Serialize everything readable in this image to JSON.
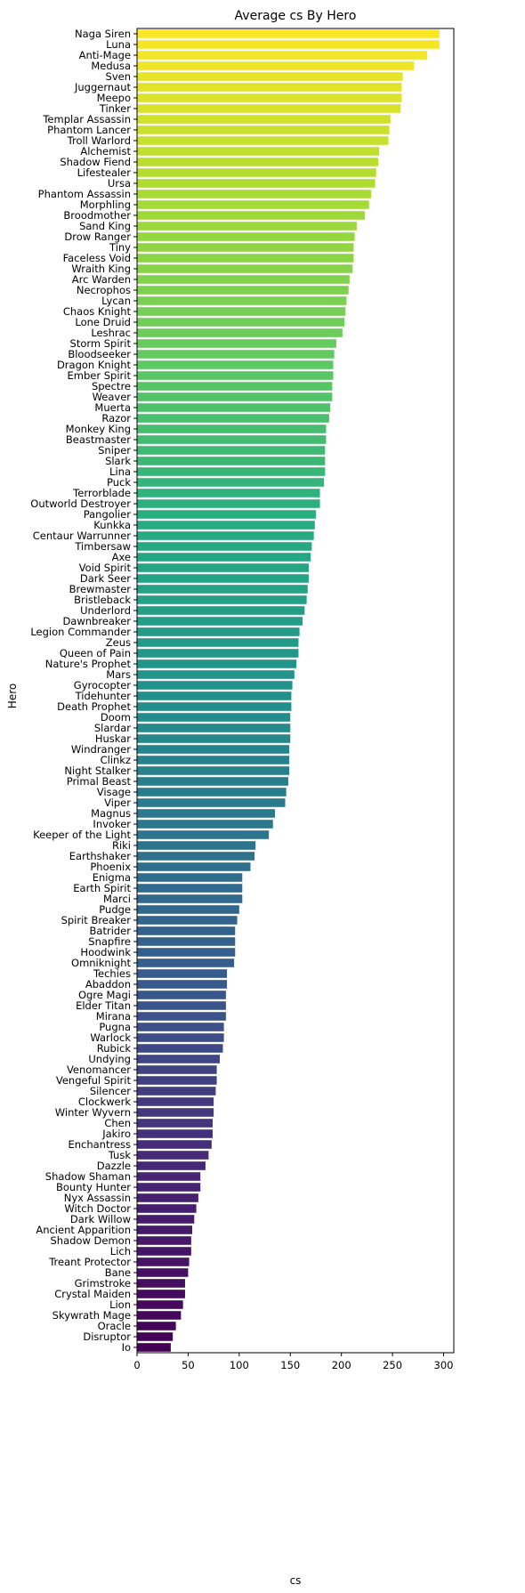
{
  "chart_data": {
    "type": "bar",
    "orientation": "horizontal",
    "title": "Average cs By Hero",
    "xlabel": "cs",
    "ylabel": "Hero",
    "xlim": [
      0,
      310
    ],
    "xticks": [
      0,
      50,
      100,
      150,
      200,
      250,
      300
    ],
    "grid": false,
    "colormap": "viridis",
    "categories": [
      "Naga Siren",
      "Luna",
      "Anti-Mage",
      "Medusa",
      "Sven",
      "Juggernaut",
      "Meepo",
      "Tinker",
      "Templar Assassin",
      "Phantom Lancer",
      "Troll Warlord",
      "Alchemist",
      "Shadow Fiend",
      "Lifestealer",
      "Ursa",
      "Phantom Assassin",
      "Morphling",
      "Broodmother",
      "Sand King",
      "Drow Ranger",
      "Tiny",
      "Faceless Void",
      "Wraith King",
      "Arc Warden",
      "Necrophos",
      "Lycan",
      "Chaos Knight",
      "Lone Druid",
      "Leshrac",
      "Storm Spirit",
      "Bloodseeker",
      "Dragon Knight",
      "Ember Spirit",
      "Spectre",
      "Weaver",
      "Muerta",
      "Razor",
      "Monkey King",
      "Beastmaster",
      "Sniper",
      "Slark",
      "Lina",
      "Puck",
      "Terrorblade",
      "Outworld Destroyer",
      "Pangolier",
      "Kunkka",
      "Centaur Warrunner",
      "Timbersaw",
      "Axe",
      "Void Spirit",
      "Dark Seer",
      "Brewmaster",
      "Bristleback",
      "Underlord",
      "Dawnbreaker",
      "Legion Commander",
      "Zeus",
      "Queen of Pain",
      "Nature's Prophet",
      "Mars",
      "Gyrocopter",
      "Tidehunter",
      "Death Prophet",
      "Doom",
      "Slardar",
      "Huskar",
      "Windranger",
      "Clinkz",
      "Night Stalker",
      "Primal Beast",
      "Visage",
      "Viper",
      "Magnus",
      "Invoker",
      "Keeper of the Light",
      "Riki",
      "Earthshaker",
      "Phoenix",
      "Enigma",
      "Earth Spirit",
      "Marci",
      "Pudge",
      "Spirit Breaker",
      "Batrider",
      "Snapfire",
      "Hoodwink",
      "Omniknight",
      "Techies",
      "Abaddon",
      "Ogre Magi",
      "Elder Titan",
      "Mirana",
      "Pugna",
      "Warlock",
      "Rubick",
      "Undying",
      "Venomancer",
      "Vengeful Spirit",
      "Silencer",
      "Clockwerk",
      "Winter Wyvern",
      "Chen",
      "Jakiro",
      "Enchantress",
      "Tusk",
      "Dazzle",
      "Shadow Shaman",
      "Bounty Hunter",
      "Nyx Assassin",
      "Witch Doctor",
      "Dark Willow",
      "Ancient Apparition",
      "Shadow Demon",
      "Lich",
      "Treant Protector",
      "Bane",
      "Grimstroke",
      "Crystal Maiden",
      "Lion",
      "Skywrath Mage",
      "Oracle",
      "Disruptor",
      "Io"
    ],
    "values": [
      296,
      296,
      284,
      271,
      260,
      259,
      259,
      258,
      248,
      247,
      246,
      237,
      236,
      234,
      233,
      229,
      227,
      223,
      215,
      213,
      212,
      212,
      211,
      208,
      207,
      205,
      204,
      203,
      201,
      195,
      193,
      192,
      192,
      191,
      191,
      189,
      188,
      185,
      185,
      184,
      184,
      184,
      183,
      179,
      179,
      175,
      174,
      173,
      171,
      170,
      168,
      168,
      167,
      166,
      164,
      162,
      159,
      158,
      158,
      156,
      154,
      152,
      151,
      151,
      150,
      150,
      150,
      149,
      149,
      149,
      148,
      146,
      145,
      135,
      133,
      129,
      116,
      115,
      111,
      103,
      103,
      103,
      100,
      98,
      96,
      96,
      96,
      95,
      88,
      88,
      87,
      87,
      87,
      85,
      85,
      84,
      81,
      78,
      78,
      77,
      75,
      75,
      74,
      74,
      73,
      70,
      67,
      62,
      62,
      60,
      58,
      56,
      54,
      53,
      53,
      51,
      50,
      47,
      47,
      45,
      43,
      38,
      35,
      33
    ]
  }
}
